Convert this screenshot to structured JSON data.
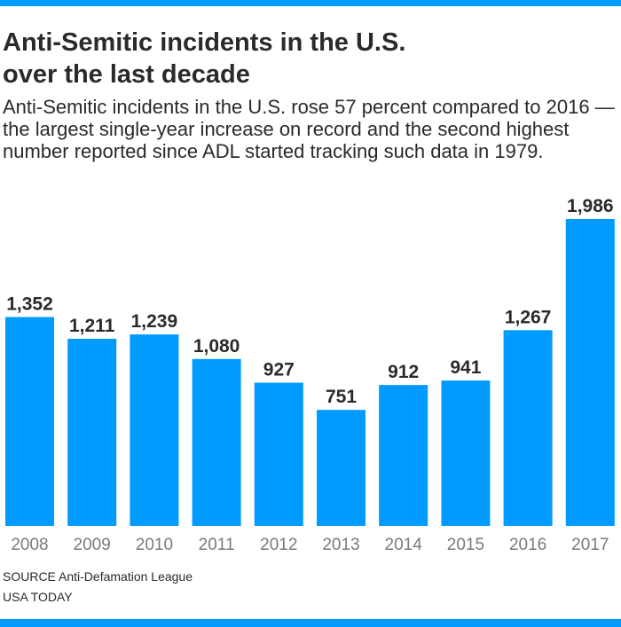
{
  "colors": {
    "accent": "#009bff",
    "bar": "#009bff",
    "text": "#2a2a2a",
    "tick": "#7a7a7a"
  },
  "title_line1": "Anti-Semitic incidents in the U.S.",
  "title_line2": "over the last decade",
  "subtitle": "Anti-Semitic incidents in the U.S. rose 57 percent compared to 2016 — the largest single-year increase on record and the second highest number reported since ADL started tracking such data in 1979.",
  "source": "SOURCE Anti-Defamation League",
  "credit": "USA TODAY",
  "chart_data": {
    "type": "bar",
    "title": "Anti-Semitic incidents in the U.S. over the last decade",
    "categories": [
      "2008",
      "2009",
      "2010",
      "2011",
      "2012",
      "2013",
      "2014",
      "2015",
      "2016",
      "2017"
    ],
    "values": [
      1352,
      1211,
      1239,
      1080,
      927,
      751,
      912,
      941,
      1267,
      1986
    ],
    "value_labels": [
      "1,352",
      "1,211",
      "1,239",
      "1,080",
      "927",
      "751",
      "912",
      "941",
      "1,267",
      "1,986"
    ],
    "xlabel": "",
    "ylabel": "",
    "ylim": [
      0,
      1986
    ],
    "grid": false,
    "legend": "none"
  }
}
